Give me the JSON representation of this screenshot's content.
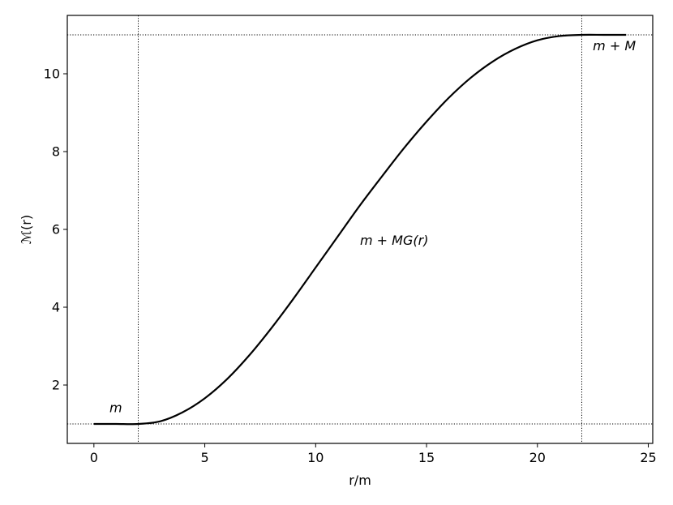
{
  "chart_data": {
    "type": "line",
    "xlabel": "r/m",
    "ylabel": "ℳ(r)",
    "xlim": [
      -1.2,
      25.2
    ],
    "ylim": [
      0.5,
      11.5
    ],
    "xticks": [
      0,
      5,
      10,
      15,
      20,
      25
    ],
    "yticks": [
      2,
      4,
      6,
      8,
      10
    ],
    "grid": false,
    "series": [
      {
        "x": [
          0,
          1,
          2,
          3,
          4,
          5,
          6,
          7,
          8,
          9,
          10,
          11,
          12,
          13,
          14,
          15,
          16,
          17,
          18,
          19,
          20,
          21,
          22,
          23,
          24
        ],
        "y": [
          1,
          1,
          1,
          1.07,
          1.3,
          1.66,
          2.15,
          2.76,
          3.46,
          4.22,
          5.02,
          5.82,
          6.62,
          7.37,
          8.1,
          8.77,
          9.38,
          9.9,
          10.32,
          10.64,
          10.86,
          10.97,
          11,
          11,
          11
        ],
        "color": "#000000"
      }
    ],
    "reference_lines": {
      "vertical": [
        2,
        22
      ],
      "horizontal": [
        1,
        11
      ]
    },
    "annotations": [
      {
        "text": "m",
        "x": 0.7,
        "y": 1.3
      },
      {
        "text": "m + MG(r)",
        "x": 12.0,
        "y": 5.6
      },
      {
        "text": "m + M",
        "x": 22.5,
        "y": 10.6
      }
    ]
  }
}
